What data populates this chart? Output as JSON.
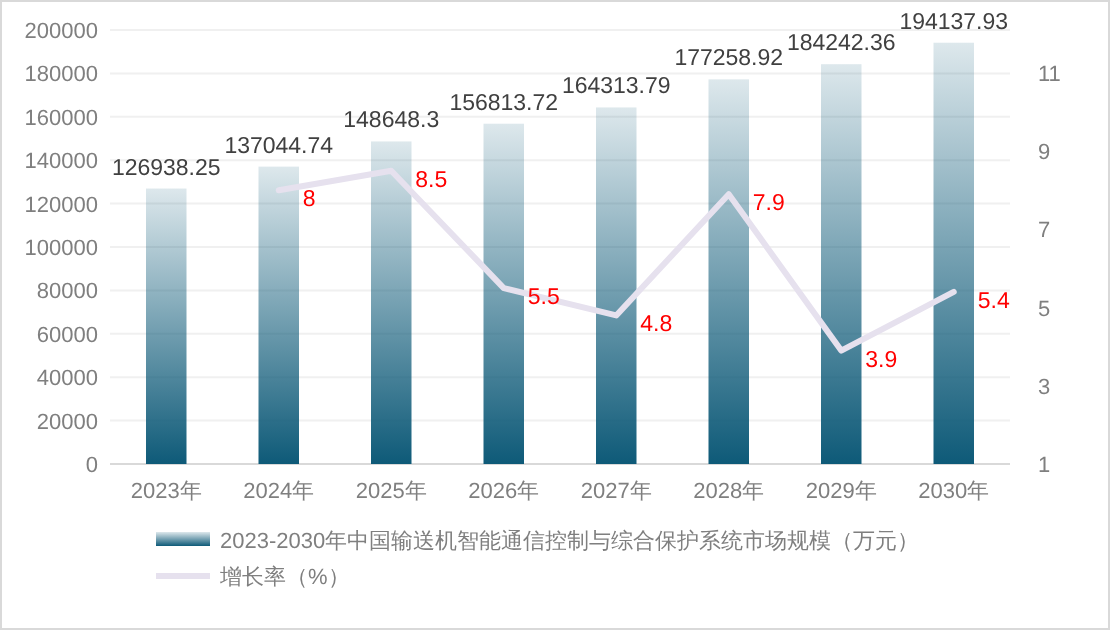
{
  "chart_data": {
    "type": "bar",
    "categories": [
      "2023年",
      "2024年",
      "2025年",
      "2026年",
      "2027年",
      "2028年",
      "2029年",
      "2030年"
    ],
    "series": [
      {
        "name": "2023-2030年中国输送机智能通信控制与综合保护系统市场规模（万元）",
        "color": "#0e5a78",
        "values": [
          126938.25,
          137044.74,
          148648.3,
          156813.72,
          164313.79,
          177258.92,
          184242.36,
          194137.93
        ]
      },
      {
        "name": "增长率（%）",
        "type": "line",
        "axis": "y2",
        "color": "#e6e1ee",
        "values": [
          null,
          8,
          8.5,
          5.5,
          4.8,
          7.9,
          3.9,
          5.4
        ]
      }
    ],
    "ylim": [
      0,
      200000
    ],
    "yticks": [
      0,
      20000,
      40000,
      60000,
      80000,
      100000,
      120000,
      140000,
      160000,
      180000,
      200000
    ],
    "y2lim": [
      1,
      12.1
    ],
    "y2ticks": [
      1,
      3,
      5,
      7,
      9,
      11
    ],
    "grid": "y",
    "legend": "bottom",
    "data_labels": true,
    "marker": "none"
  }
}
